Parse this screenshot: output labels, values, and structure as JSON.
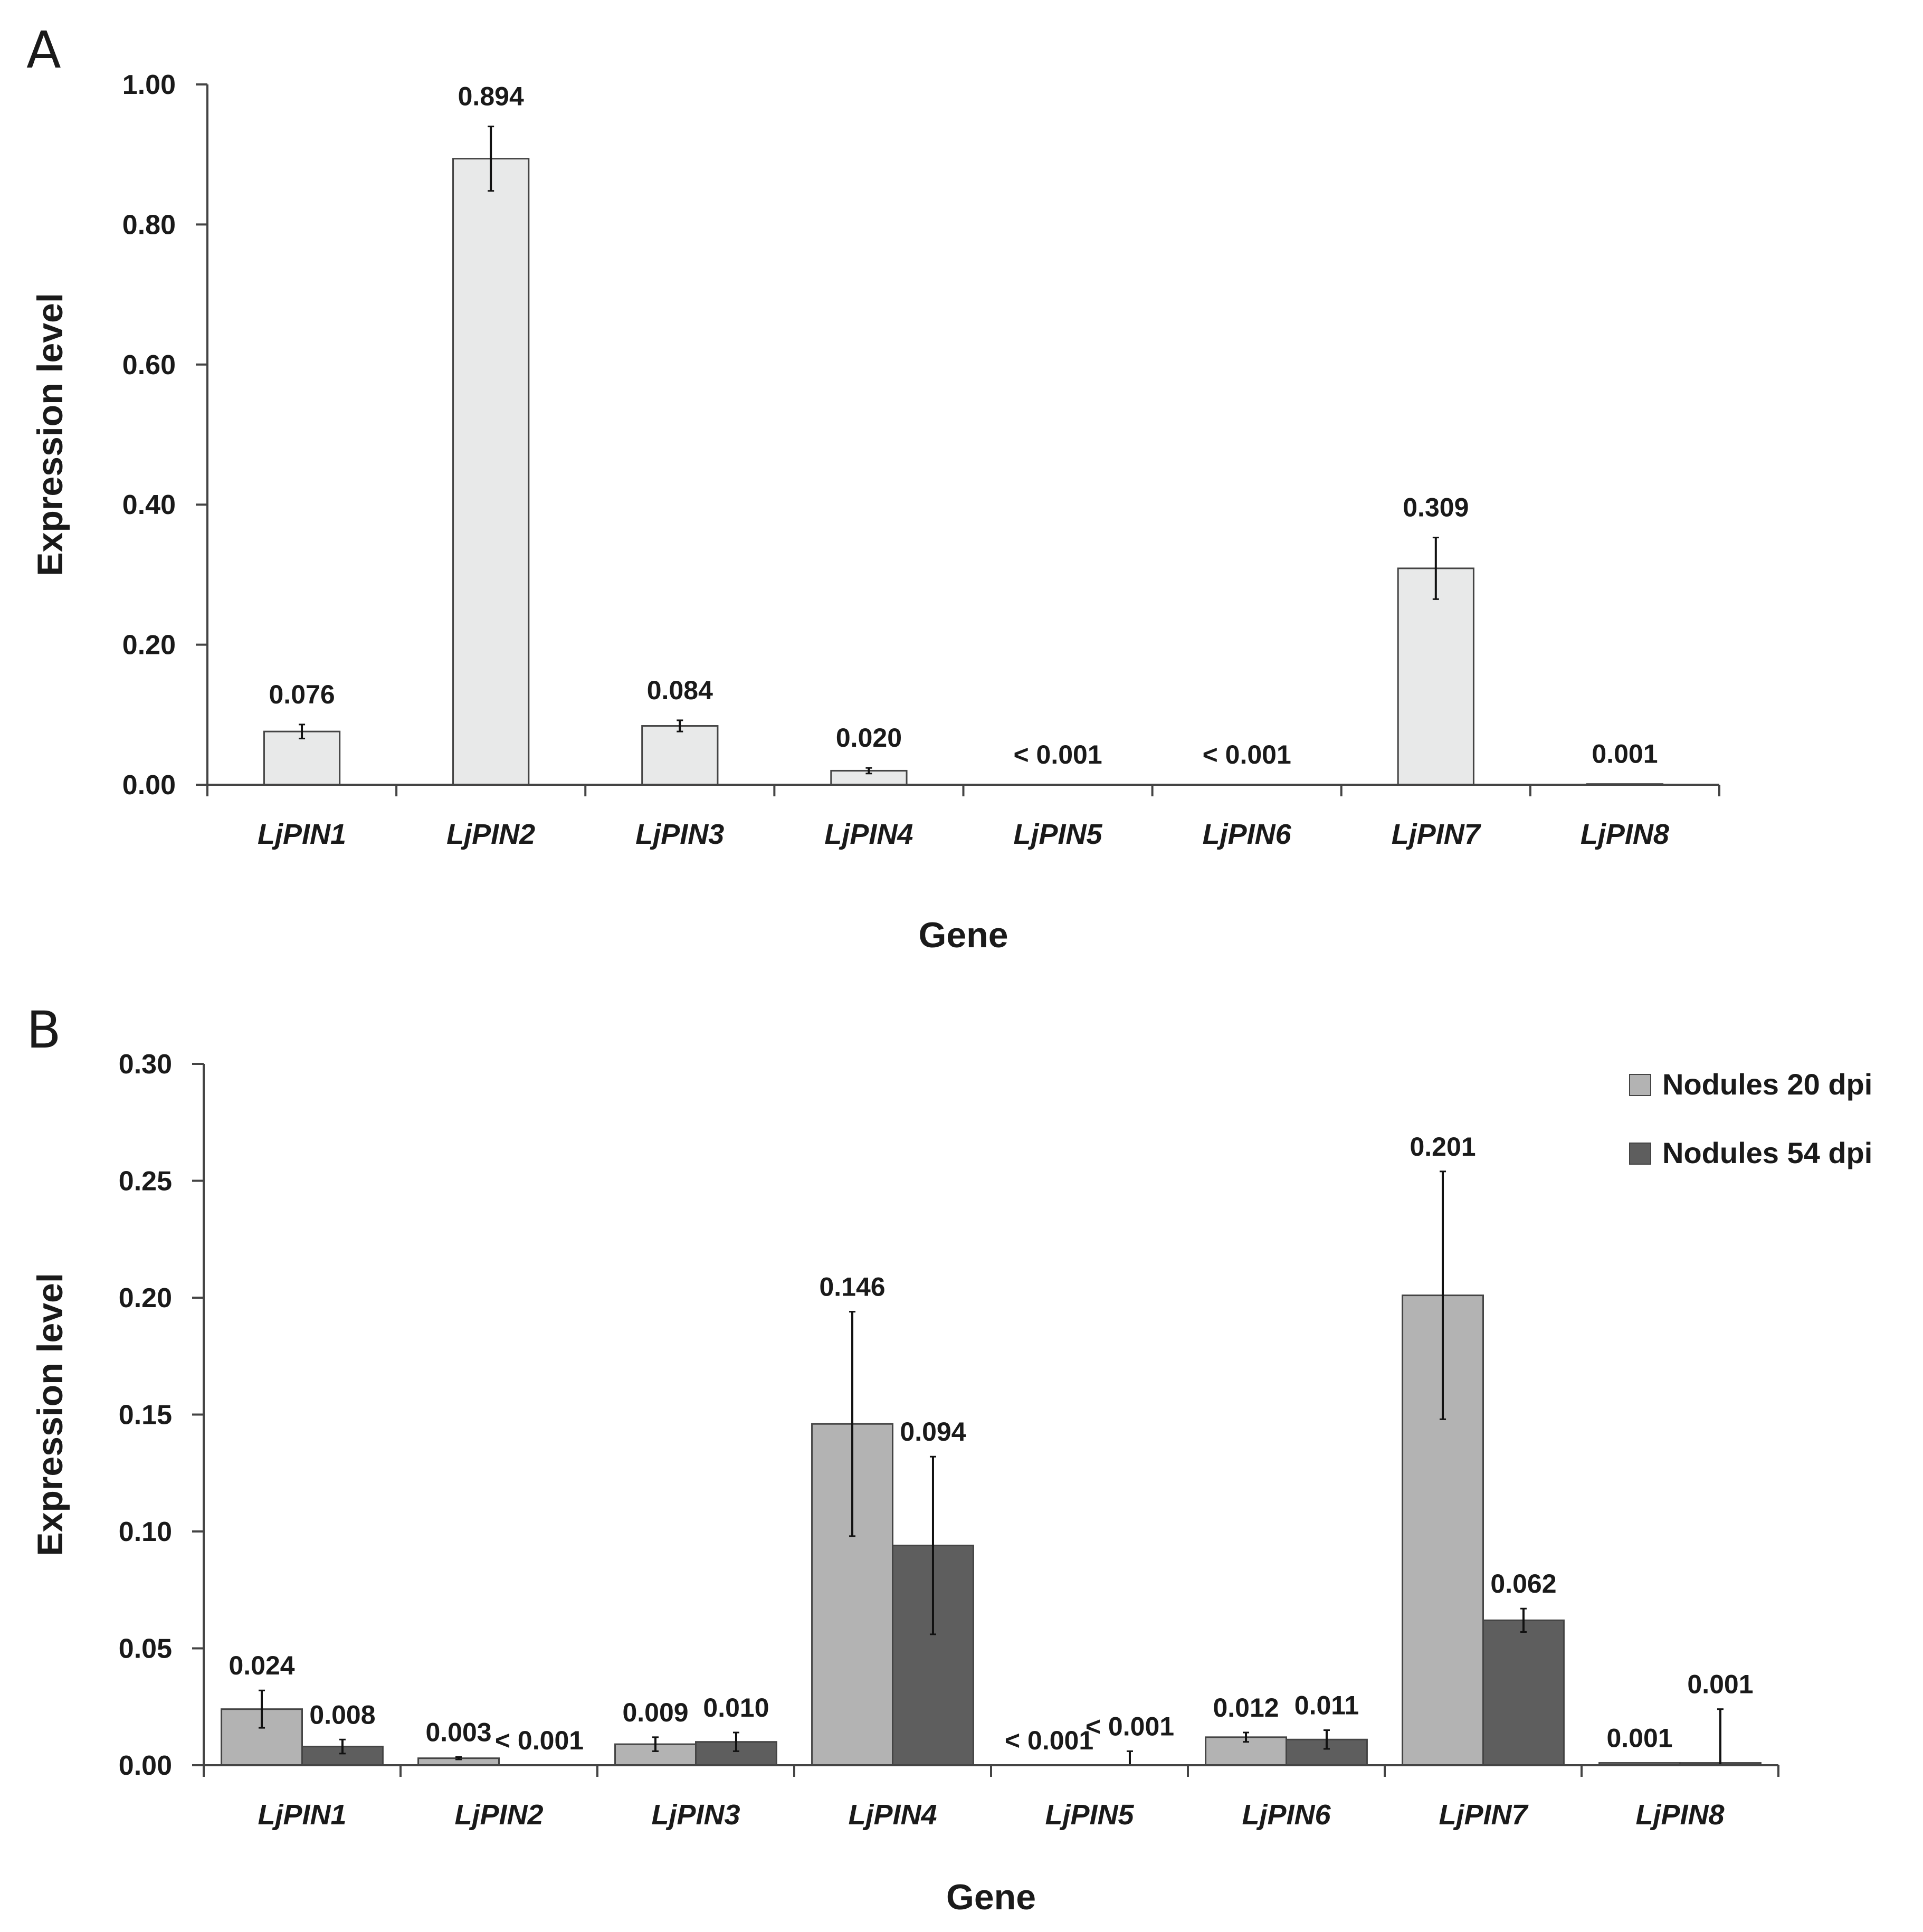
{
  "colors": {
    "panel_a_bar": "#e8e9e9",
    "nodules_20": "#b3b3b3",
    "nodules_54": "#5e5e5e",
    "bar_outline": "#444444",
    "axis": "#444444",
    "text": "#1a1a1a"
  },
  "chart_data": [
    {
      "panel": "A",
      "type": "bar",
      "xlabel": "Gene",
      "ylabel": "Expression level",
      "ylim": [
        0,
        1.0
      ],
      "yticks": [
        "0.00",
        "0.20",
        "0.40",
        "0.60",
        "0.80",
        "1.00"
      ],
      "categories": [
        "LjPIN1",
        "LjPIN2",
        "LjPIN3",
        "LjPIN4",
        "LjPIN5",
        "LjPIN6",
        "LjPIN7",
        "LjPIN8"
      ],
      "series": [
        {
          "name": "",
          "color": "#e8e9e9",
          "values": [
            0.076,
            0.894,
            0.084,
            0.02,
            0.0,
            0.0,
            0.309,
            0.001
          ],
          "errors": [
            0.01,
            0.046,
            0.008,
            0.004,
            0.0,
            0.0,
            0.044,
            0.0
          ],
          "labels": [
            "0.076",
            "0.894",
            "0.084",
            "0.020",
            "< 0.001",
            "< 0.001",
            "0.309",
            "0.001"
          ]
        }
      ]
    },
    {
      "panel": "B",
      "type": "bar",
      "xlabel": "Gene",
      "ylabel": "Expression level",
      "ylim": [
        0,
        0.3
      ],
      "yticks": [
        "0.00",
        "0.05",
        "0.10",
        "0.15",
        "0.20",
        "0.25",
        "0.30"
      ],
      "legend_position": "top-right",
      "categories": [
        "LjPIN1",
        "LjPIN2",
        "LjPIN3",
        "LjPIN4",
        "LjPIN5",
        "LjPIN6",
        "LjPIN7",
        "LjPIN8"
      ],
      "series": [
        {
          "name": "Nodules 20 dpi",
          "color": "#b3b3b3",
          "values": [
            0.024,
            0.003,
            0.009,
            0.146,
            0.0,
            0.012,
            0.201,
            0.001
          ],
          "errors": [
            0.008,
            0.0005,
            0.003,
            0.048,
            0.0,
            0.002,
            0.053,
            0.0
          ],
          "labels": [
            "0.024",
            "0.003",
            "0.009",
            "0.146",
            "< 0.001",
            "0.012",
            "0.201",
            "0.001"
          ]
        },
        {
          "name": "Nodules 54 dpi",
          "color": "#5e5e5e",
          "values": [
            0.008,
            0.0,
            0.01,
            0.094,
            0.0,
            0.011,
            0.062,
            0.001
          ],
          "errors": [
            0.003,
            0.0,
            0.004,
            0.038,
            0.006,
            0.004,
            0.005,
            0.023
          ],
          "labels": [
            "0.008",
            "< 0.001",
            "0.010",
            "0.094",
            "< 0.001",
            "0.011",
            "0.062",
            "0.001"
          ]
        }
      ]
    }
  ]
}
